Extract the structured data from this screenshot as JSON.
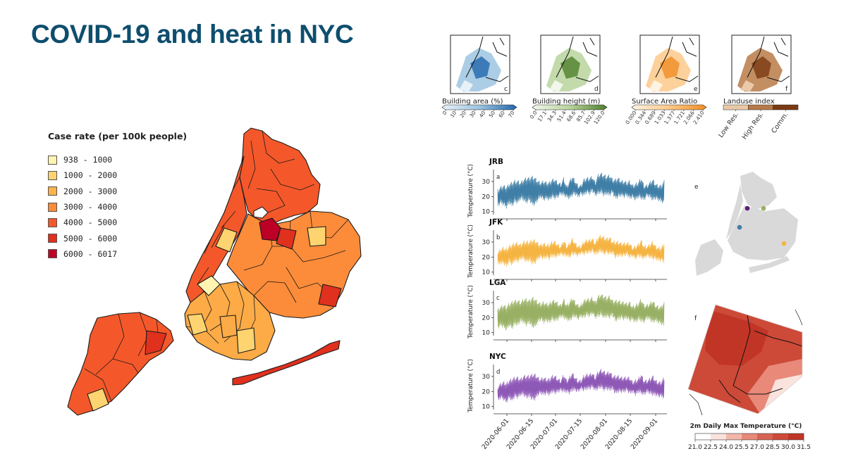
{
  "slide": {
    "title": "COVID-19 and heat in NYC"
  },
  "case_legend": {
    "title": "Case rate (per 100k people)",
    "items": [
      {
        "label": "938 - 1000",
        "color": "#fff4b0"
      },
      {
        "label": "1000 - 2000",
        "color": "#fed470"
      },
      {
        "label": "2000 - 3000",
        "color": "#feb24c"
      },
      {
        "label": "3000 - 4000",
        "color": "#fc8c3a"
      },
      {
        "label": "4000 - 5000",
        "color": "#f4582a"
      },
      {
        "label": "5000 - 6000",
        "color": "#e0301e"
      },
      {
        "label": "6000 - 6017",
        "color": "#bd0026"
      }
    ]
  },
  "small_maps": [
    {
      "letter": "c",
      "label": "Building area (%)",
      "ticks": [
        "0",
        "10",
        "20",
        "30",
        "40",
        "50",
        "60",
        "70"
      ],
      "colors": [
        "#e8f1f8",
        "#9cc4e0",
        "#2166ac"
      ]
    },
    {
      "letter": "d",
      "label": "Building height (m)",
      "ticks": [
        "0.0",
        "17.1",
        "34.3",
        "51.4",
        "68.6",
        "85.7",
        "102.9",
        "120.0"
      ],
      "colors": [
        "#f2f7ec",
        "#b8d49c",
        "#4d7f2a"
      ]
    },
    {
      "letter": "e",
      "label": "Surface Area Ratio",
      "ticks": [
        "0.000",
        "0.344",
        "0.689",
        "1.033",
        "1.377",
        "1.721",
        "2.066",
        "2.410"
      ],
      "colors": [
        "#fff4e4",
        "#fdc98a",
        "#f08c24"
      ]
    },
    {
      "letter": "f",
      "label": "Landuse index",
      "ticks": [
        "Low Res.",
        "High Res.",
        "Comm."
      ],
      "colors": [
        "#e9c9a8",
        "#b77a47",
        "#7b3a12"
      ]
    }
  ],
  "chart_data": {
    "type": "line",
    "title": "",
    "xlabel": "",
    "ylabel": "Temperature (°C)",
    "ylim": [
      8,
      37
    ],
    "yticks": [
      10,
      20,
      30
    ],
    "x_ticks": [
      "2020-06-01",
      "2020-06-15",
      "2020-07-01",
      "2020-07-15",
      "2020-08-01",
      "2020-08-15",
      "2020-09-01"
    ],
    "x_range": [
      "2020-05-22",
      "2020-09-08"
    ],
    "series": [
      {
        "name": "JRB",
        "panel": "a",
        "color": "#3f7ea6",
        "weekly_high": [
          25,
          27,
          28,
          27,
          29,
          30,
          31,
          31,
          30,
          32,
          33,
          33,
          34,
          33,
          31,
          30,
          31,
          30,
          30,
          32,
          32,
          30,
          29,
          33,
          27,
          31,
          34,
          31,
          28,
          28,
          32,
          33,
          33,
          34,
          30,
          35,
          36,
          35,
          34,
          35,
          32,
          32,
          33,
          31,
          31,
          30,
          31,
          28,
          29,
          30,
          33,
          28,
          28,
          30,
          32,
          29,
          28,
          28,
          31
        ],
        "weekly_low": [
          13,
          15,
          14,
          12,
          15,
          13,
          16,
          15,
          18,
          17,
          15,
          17,
          14,
          14,
          17,
          19,
          17,
          18,
          17,
          19,
          18,
          19,
          21,
          20,
          19,
          18,
          20,
          21,
          19,
          21,
          20,
          22,
          21,
          23,
          20,
          21,
          22,
          20,
          21,
          20,
          22,
          18,
          19,
          20,
          19,
          20,
          18,
          19,
          17,
          19,
          18,
          17,
          20,
          19,
          17,
          18,
          17,
          16,
          15
        ]
      },
      {
        "name": "JFK",
        "panel": "b",
        "color": "#f5b441",
        "weekly_high": [
          24,
          26,
          27,
          26,
          28,
          29,
          30,
          30,
          29,
          31,
          31,
          31,
          32,
          32,
          30,
          29,
          30,
          29,
          29,
          31,
          31,
          29,
          28,
          32,
          28,
          30,
          33,
          30,
          28,
          28,
          31,
          32,
          32,
          33,
          30,
          34,
          35,
          34,
          33,
          34,
          31,
          31,
          31,
          30,
          30,
          30,
          30,
          27,
          28,
          29,
          32,
          28,
          28,
          29,
          31,
          28,
          27,
          27,
          30
        ],
        "weekly_low": [
          14,
          15,
          15,
          13,
          16,
          14,
          17,
          16,
          18,
          18,
          16,
          17,
          15,
          15,
          18,
          19,
          18,
          19,
          18,
          20,
          19,
          20,
          21,
          20,
          20,
          19,
          21,
          21,
          20,
          22,
          21,
          22,
          22,
          23,
          21,
          22,
          23,
          21,
          22,
          21,
          22,
          19,
          20,
          20,
          20,
          21,
          19,
          20,
          18,
          20,
          19,
          18,
          20,
          19,
          18,
          18,
          17,
          17,
          16
        ]
      },
      {
        "name": "LGA",
        "panel": "c",
        "color": "#98b063",
        "weekly_high": [
          26,
          28,
          29,
          28,
          30,
          31,
          32,
          32,
          31,
          33,
          33,
          32,
          34,
          33,
          31,
          30,
          31,
          30,
          30,
          32,
          32,
          30,
          29,
          33,
          29,
          31,
          34,
          31,
          29,
          29,
          32,
          33,
          33,
          34,
          31,
          35,
          36,
          35,
          34,
          35,
          32,
          32,
          32,
          31,
          31,
          30,
          31,
          28,
          29,
          30,
          33,
          29,
          29,
          30,
          32,
          29,
          28,
          28,
          31
        ],
        "weekly_low": [
          12,
          14,
          13,
          11,
          14,
          12,
          15,
          14,
          17,
          16,
          14,
          16,
          13,
          13,
          16,
          18,
          16,
          17,
          16,
          18,
          17,
          18,
          20,
          19,
          18,
          17,
          19,
          20,
          18,
          20,
          19,
          21,
          20,
          22,
          19,
          20,
          21,
          19,
          20,
          19,
          21,
          17,
          18,
          19,
          18,
          19,
          17,
          18,
          16,
          18,
          17,
          16,
          19,
          18,
          16,
          17,
          16,
          15,
          14
        ]
      },
      {
        "name": "NYC",
        "panel": "d",
        "color": "#8e58b7",
        "weekly_high": [
          24,
          26,
          27,
          26,
          28,
          29,
          30,
          30,
          29,
          31,
          31,
          31,
          32,
          32,
          30,
          29,
          30,
          29,
          29,
          31,
          31,
          29,
          28,
          32,
          28,
          30,
          33,
          30,
          28,
          28,
          31,
          32,
          32,
          33,
          30,
          34,
          35,
          34,
          33,
          34,
          31,
          31,
          31,
          30,
          30,
          30,
          30,
          27,
          28,
          29,
          32,
          28,
          28,
          29,
          31,
          28,
          27,
          27,
          30
        ],
        "weekly_low": [
          13,
          15,
          14,
          12,
          15,
          13,
          16,
          15,
          17,
          17,
          15,
          16,
          14,
          14,
          17,
          18,
          17,
          18,
          17,
          19,
          18,
          19,
          20,
          19,
          19,
          18,
          20,
          20,
          19,
          21,
          20,
          21,
          21,
          22,
          20,
          21,
          22,
          20,
          21,
          20,
          21,
          18,
          19,
          19,
          19,
          20,
          18,
          19,
          17,
          19,
          18,
          17,
          19,
          18,
          17,
          17,
          16,
          16,
          15
        ]
      }
    ],
    "station_map": {
      "letter": "e",
      "stations": [
        {
          "name": "LGA",
          "color": "#98b063"
        },
        {
          "name": "JRB",
          "color": "#3f7ea6"
        },
        {
          "name": "NYC",
          "color": "#5c1e78"
        },
        {
          "name": "JFK",
          "color": "#f5b441"
        }
      ]
    },
    "temperature_map": {
      "letter": "f",
      "colorbar_title": "2m Daily Max Temperature (°C)",
      "ticks": [
        "21.0",
        "22.5",
        "24.0",
        "25.5",
        "27.0",
        "28.5",
        "30.0",
        "31.5"
      ],
      "colors": [
        "#ffffff",
        "#fbe3dd",
        "#f3b7aa",
        "#e8897a",
        "#d86353",
        "#cd4a38",
        "#c13527"
      ]
    }
  }
}
